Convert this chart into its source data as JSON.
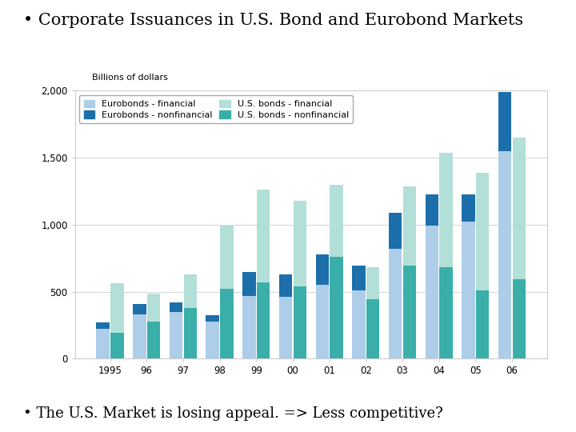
{
  "title": "• Corporate Issuances in U.S. Bond and Eurobond Markets",
  "subtitle": "• The U.S. Market is losing appeal. => Less competitive?",
  "chart_ylabel": "Billions of dollars",
  "years": [
    "1995",
    "96",
    "97",
    "98",
    "99",
    "00",
    "01",
    "02",
    "03",
    "04",
    "05",
    "06"
  ],
  "eurobonds_financial": [
    220,
    330,
    350,
    275,
    470,
    460,
    550,
    510,
    820,
    990,
    1020,
    1550
  ],
  "eurobonds_nonfinancial": [
    50,
    75,
    70,
    50,
    175,
    170,
    225,
    185,
    270,
    235,
    205,
    440
  ],
  "us_bonds_financial": [
    370,
    210,
    250,
    470,
    690,
    640,
    540,
    240,
    590,
    850,
    880,
    1060
  ],
  "us_bonds_nonfinancial": [
    195,
    275,
    380,
    520,
    570,
    540,
    760,
    445,
    695,
    685,
    510,
    590
  ],
  "color_euro_fin": "#aecde8",
  "color_euro_nonfin": "#1c6fab",
  "color_us_fin": "#b2e0d8",
  "color_us_nonfin": "#3aafa9",
  "ylim": [
    0,
    2000
  ],
  "yticks": [
    0,
    500,
    1000,
    1500,
    2000
  ],
  "ytick_labels": [
    "0",
    "500",
    "1,000",
    "1,500",
    "2,000"
  ],
  "legend_labels": [
    "Eurobonds - financial",
    "Eurobonds - nonfinancial",
    "U.S. bonds - financial",
    "U.S. bonds - nonfinancial"
  ],
  "background_color": "#ffffff",
  "title_fontsize": 15,
  "subtitle_fontsize": 13,
  "tick_fontsize": 8.5,
  "legend_fontsize": 8
}
